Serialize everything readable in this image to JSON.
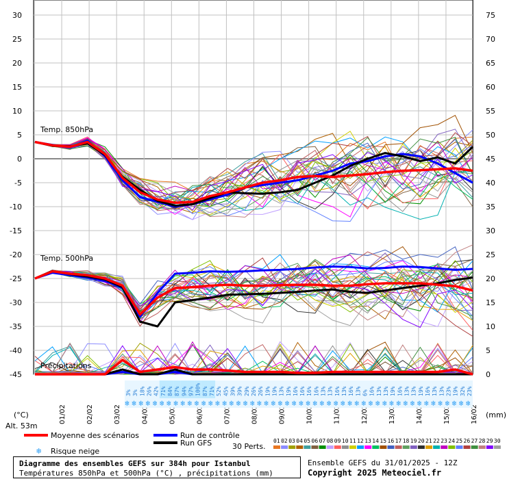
{
  "chart_data": {
    "type": "line",
    "title": "Diagramme des ensembles GEFS sur 384h pour Istanbul",
    "subtitle": "Températures 850hPa et 500hPa (°C) , précipitations (mm)",
    "run_info": "Ensemble GEFS du 31/01/2025 - 12Z",
    "copyright": "Copyright 2025 Meteociel.fr",
    "altitude": "Alt. 53m",
    "left_axis_unit": "(°C)",
    "right_axis_unit": "(mm)",
    "left_ticks": [
      "30",
      "25",
      "20",
      "15",
      "10",
      "5",
      "0",
      "-5",
      "-10",
      "-15",
      "-20",
      "-25",
      "-30",
      "-35",
      "-40",
      "-45"
    ],
    "right_ticks": [
      "75",
      "70",
      "65",
      "60",
      "55",
      "50",
      "45",
      "40",
      "35",
      "30",
      "25",
      "20",
      "15",
      "10",
      "5",
      "0"
    ],
    "ylim_temp": [
      -45,
      30
    ],
    "ylim_precip": [
      0,
      75
    ],
    "dates": [
      "01/02",
      "02/02",
      "03/02",
      "04/02",
      "05/02",
      "06/02",
      "07/02",
      "08/02",
      "09/02",
      "10/02",
      "11/02",
      "12/02",
      "13/02",
      "14/02",
      "15/02",
      "16/02"
    ],
    "panel_labels": {
      "t850": "Temp. 850hPa",
      "t500": "Temp. 500hPa",
      "precip": "Précipitations"
    },
    "snow_risk_pct": [
      "3%",
      "3%",
      "18%",
      "26%",
      "42%",
      "71%",
      "84%",
      "87%",
      "94%",
      "97%",
      "100%",
      "87%",
      "71%",
      "52%",
      "45%",
      "39%",
      "39%",
      "29%",
      "26%",
      "26%",
      "19%",
      "19%",
      "13%",
      "19%",
      "16%",
      "16%",
      "16%",
      "16%",
      "13%",
      "13%",
      "16%",
      "13%",
      "16%",
      "13%",
      "6%",
      "16%",
      "13%",
      "13%",
      "19%",
      "16%",
      "13%",
      "13%",
      "19%",
      "16%",
      "13%",
      "13%",
      "23%",
      "19%",
      "32%",
      "23%"
    ],
    "series": [
      {
        "name": "Moyenne des scénarios",
        "color": "#ff0000",
        "t850": [
          3.5,
          2.8,
          2.5,
          3.5,
          1,
          -4,
          -7,
          -8.5,
          -9.2,
          -9,
          -7.8,
          -7,
          -6,
          -5,
          -4.5,
          -3.8,
          -3.6,
          -3.8,
          -3.5,
          -3.2,
          -2.8,
          -2.5,
          -2.4,
          -2.2,
          -2,
          -2.5
        ],
        "t500": [
          -25,
          -23.5,
          -24,
          -24.3,
          -25,
          -26.5,
          -32.5,
          -29,
          -27,
          -26.8,
          -26.5,
          -26.3,
          -26.5,
          -26.5,
          -26.4,
          -26.3,
          -26.3,
          -26.5,
          -26.5,
          -26.2,
          -26,
          -26,
          -26,
          -26.3,
          -26.6,
          -27.5
        ],
        "precip": [
          0,
          0,
          0,
          0,
          0,
          3,
          0.5,
          1,
          1.5,
          1,
          1,
          0.8,
          0.5,
          0.5,
          0.5,
          0.3,
          0.3,
          0.5,
          0.5,
          0.5,
          0.5,
          0.5,
          0.5,
          0.5,
          1,
          0
        ]
      },
      {
        "name": "Run de contrôle",
        "color": "#0000ff",
        "t850": [
          3.5,
          2.9,
          2.4,
          3.8,
          0.5,
          -4.5,
          -8,
          -9,
          -10,
          -9.5,
          -8.5,
          -7.5,
          -6,
          -5.5,
          -5,
          -4.5,
          -3.5,
          -2.5,
          -1,
          -0.5,
          0.5,
          1,
          0.5,
          -1,
          -3,
          -5
        ],
        "t500": [
          -25,
          -23.8,
          -24.3,
          -24.8,
          -25.5,
          -27,
          -33,
          -28,
          -24,
          -23.8,
          -23.5,
          -23.6,
          -23.5,
          -23.3,
          -23.2,
          -23,
          -22.7,
          -22.5,
          -22.6,
          -22.9,
          -22.8,
          -22.5,
          -22.6,
          -22.9,
          -23.2,
          -23
        ],
        "precip": [
          0,
          0,
          0,
          0,
          0,
          0.5,
          0,
          0,
          0.5,
          0,
          0,
          0,
          0,
          0,
          0,
          0,
          0,
          0,
          0,
          0,
          0,
          0,
          0,
          0,
          0,
          0
        ]
      },
      {
        "name": "Run GFS",
        "color": "#000000",
        "t850": [
          3.5,
          2.7,
          2.6,
          3.2,
          0.8,
          -3.8,
          -6.5,
          -8.8,
          -9.8,
          -9.5,
          -8.2,
          -7,
          -7.2,
          -7.3,
          -7,
          -6.5,
          -5,
          -3.5,
          -1.5,
          0,
          1.2,
          0.5,
          -0.5,
          0.3,
          -1,
          2.5
        ],
        "t500": [
          -25,
          -23.4,
          -24.1,
          -24.6,
          -25.2,
          -26.8,
          -34,
          -35,
          -30,
          -29.5,
          -29,
          -28.4,
          -28.3,
          -28.2,
          -28,
          -27.8,
          -27.5,
          -27.3,
          -27.8,
          -28,
          -27.5,
          -27,
          -26.5,
          -26,
          -25.3,
          -24.8
        ],
        "precip": [
          0,
          0,
          0,
          0,
          0,
          1,
          0,
          0,
          1,
          0,
          0,
          0,
          0,
          0,
          0,
          0,
          0,
          0,
          0,
          0,
          0,
          0,
          0,
          0,
          0,
          0
        ]
      }
    ],
    "legend": {
      "mean": "Moyenne des scénarios",
      "control": "Run de contrôle",
      "gfs": "Run GFS",
      "snow": "Risque neige",
      "perts": "30 Perts."
    },
    "pert_numbers": [
      "01",
      "02",
      "03",
      "04",
      "05",
      "06",
      "07",
      "08",
      "09",
      "10",
      "11",
      "12",
      "13",
      "14",
      "15",
      "16",
      "17",
      "18",
      "19",
      "20",
      "21",
      "22",
      "23",
      "24",
      "25",
      "26",
      "27",
      "28",
      "29",
      "30"
    ],
    "pert_colors": [
      "#e87722",
      "#8c8cff",
      "#a0a000",
      "#b06000",
      "#40a0a0",
      "#806040",
      "#009000",
      "#c0a0ff",
      "#ff6060",
      "#909090",
      "#d0d000",
      "#00a0ff",
      "#ff00ff",
      "#00c060",
      "#a05000",
      "#4060c0",
      "#c06060",
      "#60a060",
      "#8060c0",
      "#303030",
      "#e0a000",
      "#00b0b0",
      "#c000c0",
      "#80c000",
      "#6080ff",
      "#b04040",
      "#409040",
      "#c08080",
      "#8000ff",
      "#a0a0a0"
    ]
  }
}
